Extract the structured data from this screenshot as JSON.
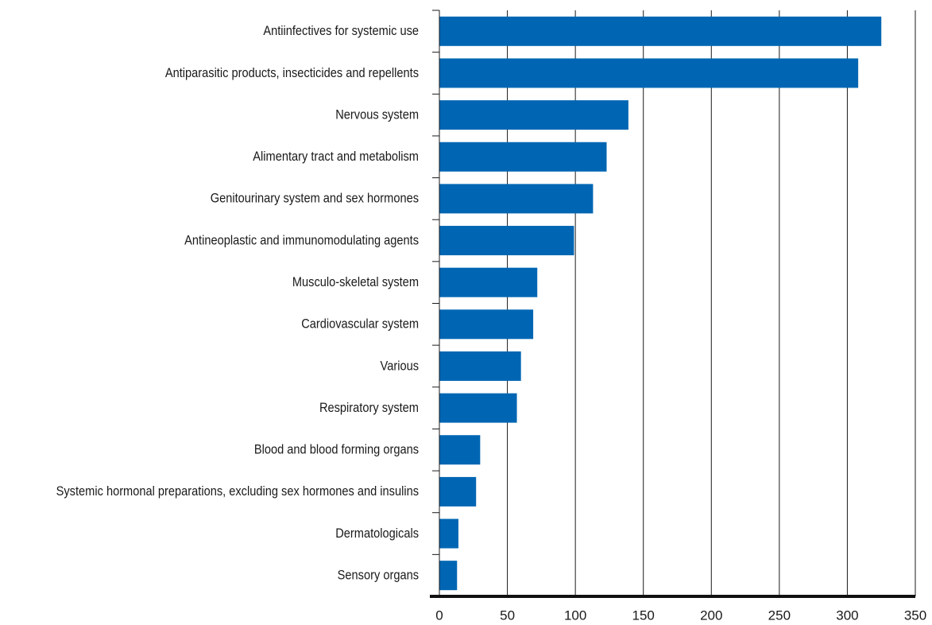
{
  "chart_data": {
    "type": "bar",
    "orientation": "horizontal",
    "categories": [
      "Antiinfectives for systemic use",
      "Antiparasitic products, insecticides and repellents",
      "Nervous system",
      "Alimentary tract and metabolism",
      "Genitourinary system and sex hormones",
      "Antineoplastic and immunomodulating agents",
      "Musculo-skeletal system",
      "Cardiovascular system",
      "Various",
      "Respiratory system",
      "Blood and blood forming organs",
      "Systemic hormonal preparations, excluding sex hormones and insulins",
      "Dermatologicals",
      "Sensory organs"
    ],
    "values": [
      325,
      308,
      139,
      123,
      113,
      99,
      72,
      69,
      60,
      57,
      30,
      27,
      14,
      13
    ],
    "xlim": [
      0,
      350
    ],
    "x_ticks": [
      0,
      50,
      100,
      150,
      200,
      250,
      300,
      350
    ],
    "bar_color": "#0066b3",
    "grid": true,
    "grid_axis": "x",
    "legend": "none",
    "title": "",
    "xlabel": "",
    "ylabel": ""
  }
}
